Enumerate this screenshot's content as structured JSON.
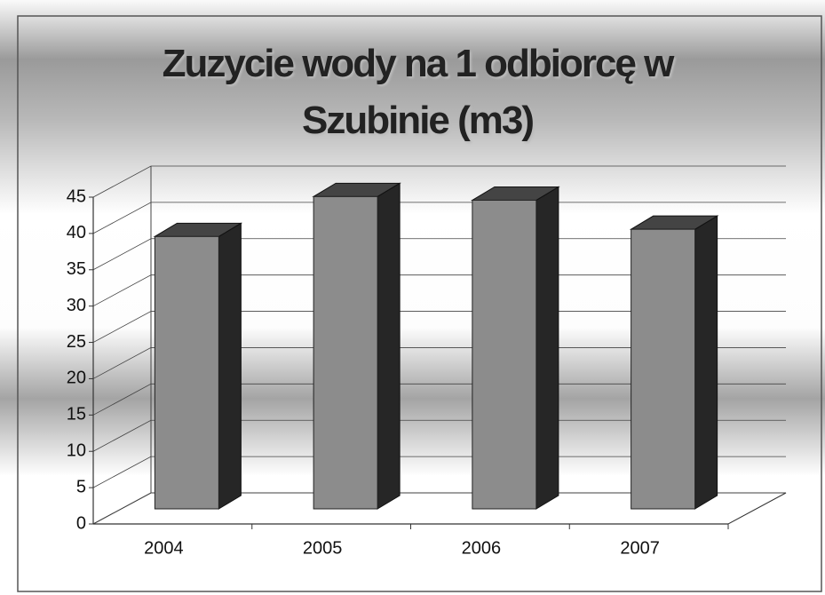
{
  "chart_data": {
    "type": "bar3d",
    "title": "Zuzycie wody na 1 odbiorcę w Szubinie (m3)",
    "categories": [
      "2004",
      "2005",
      "2006",
      "2007"
    ],
    "values": [
      37.5,
      43,
      42.5,
      38.5
    ],
    "color": "#8c8c8c",
    "ylim": [
      0,
      45
    ],
    "yticks": [
      0,
      5,
      10,
      15,
      20,
      25,
      30,
      35,
      40,
      45
    ],
    "grid": true
  }
}
